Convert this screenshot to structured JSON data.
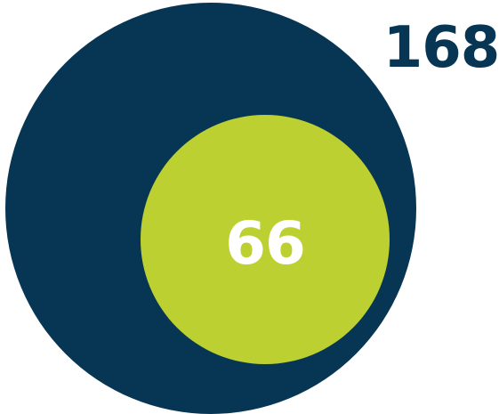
{
  "outer": {
    "value": "168",
    "color": "#073654"
  },
  "inner": {
    "value": "66",
    "color": "#bdd031",
    "text_color": "#ffffff"
  }
}
